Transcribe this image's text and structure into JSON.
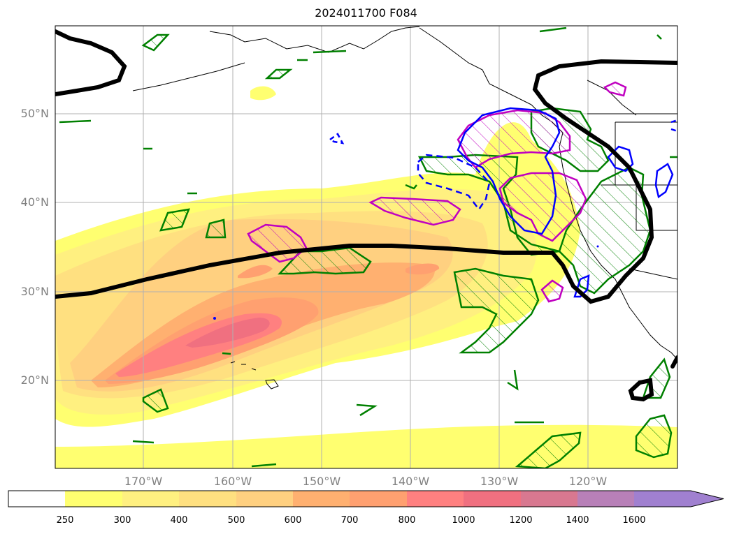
{
  "title": "2024011700 F084",
  "map": {
    "lat_labels": [
      "50°N",
      "40°N",
      "30°N",
      "20°N"
    ],
    "lon_labels": [
      "170°W",
      "160°W",
      "150°W",
      "140°W",
      "130°W",
      "120°W"
    ],
    "label_color": "#808080",
    "grid": true,
    "contour_colors": {
      "thick_line": "#000000",
      "green_hatched": "#008000",
      "magenta_hatched": "#c000c0",
      "blue_solid": "#0000ff",
      "blue_dashed": "#0000ff"
    }
  },
  "colorbar": {
    "ticks": [
      "250",
      "300",
      "400",
      "500",
      "600",
      "700",
      "800",
      "1000",
      "1200",
      "1400",
      "1600"
    ],
    "colors": [
      "#ffffff",
      "#ffff70",
      "#fff080",
      "#ffe080",
      "#ffd080",
      "#ffb070",
      "#ffa070",
      "#ff8080",
      "#f07080",
      "#d87890",
      "#b880b8",
      "#a080d0"
    ],
    "extend": "max"
  }
}
